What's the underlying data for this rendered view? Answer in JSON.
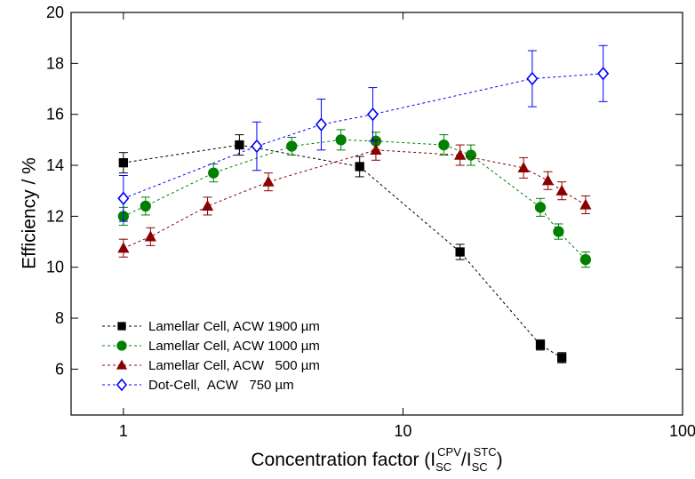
{
  "chart_data": {
    "type": "line",
    "xlabel": [
      "Concentration factor (I",
      "SC",
      "CPV",
      "/I",
      "SC",
      "STC",
      ")"
    ],
    "ylabel": "Efficiency / %",
    "xscale": "log",
    "xlim": [
      0.65,
      100
    ],
    "xticks": [
      1,
      10,
      100
    ],
    "ylim": [
      4.2,
      20
    ],
    "yticks": [
      6,
      8,
      10,
      12,
      14,
      16,
      18,
      20
    ],
    "legend": "lower left",
    "series": [
      {
        "name": "Lamellar Cell, ACW 1900 µm",
        "color": "#000000",
        "marker": "square",
        "x": [
          1,
          2.6,
          7,
          16,
          31,
          37
        ],
        "values": [
          14.1,
          14.8,
          13.95,
          10.6,
          6.95,
          6.45
        ],
        "errors": [
          0.4,
          0.4,
          0.4,
          0.3,
          0.2,
          0.2
        ]
      },
      {
        "name": "Lamellar Cell, ACW 1000 µm",
        "color": "#008000",
        "marker": "circle",
        "x": [
          1,
          1.2,
          2.1,
          4,
          6,
          8,
          14,
          17.5,
          31,
          36,
          45
        ],
        "values": [
          12.0,
          12.4,
          13.7,
          14.75,
          15.0,
          14.95,
          14.8,
          14.4,
          12.35,
          11.4,
          10.3
        ],
        "errors": [
          0.35,
          0.35,
          0.35,
          0.35,
          0.4,
          0.35,
          0.4,
          0.4,
          0.35,
          0.3,
          0.3
        ]
      },
      {
        "name": "Lamellar Cell, ACW   500 µm",
        "color": "#8b0000",
        "marker": "triangle",
        "x": [
          1,
          1.25,
          2,
          3.3,
          8,
          16,
          27,
          33,
          37,
          45
        ],
        "values": [
          10.75,
          11.2,
          12.4,
          13.35,
          14.6,
          14.4,
          13.9,
          13.4,
          13.0,
          12.45
        ],
        "errors": [
          0.35,
          0.35,
          0.35,
          0.35,
          0.4,
          0.4,
          0.4,
          0.35,
          0.35,
          0.35
        ]
      },
      {
        "name": "Dot-Cell,  ACW   750 µm",
        "color": "#0000ff",
        "marker": "diamond",
        "x": [
          1,
          3,
          5.1,
          7.8,
          29,
          52
        ],
        "values": [
          12.7,
          14.75,
          15.6,
          16.0,
          17.4,
          17.6
        ],
        "errors": [
          0.9,
          0.95,
          1.0,
          1.05,
          1.1,
          1.1
        ]
      }
    ]
  }
}
